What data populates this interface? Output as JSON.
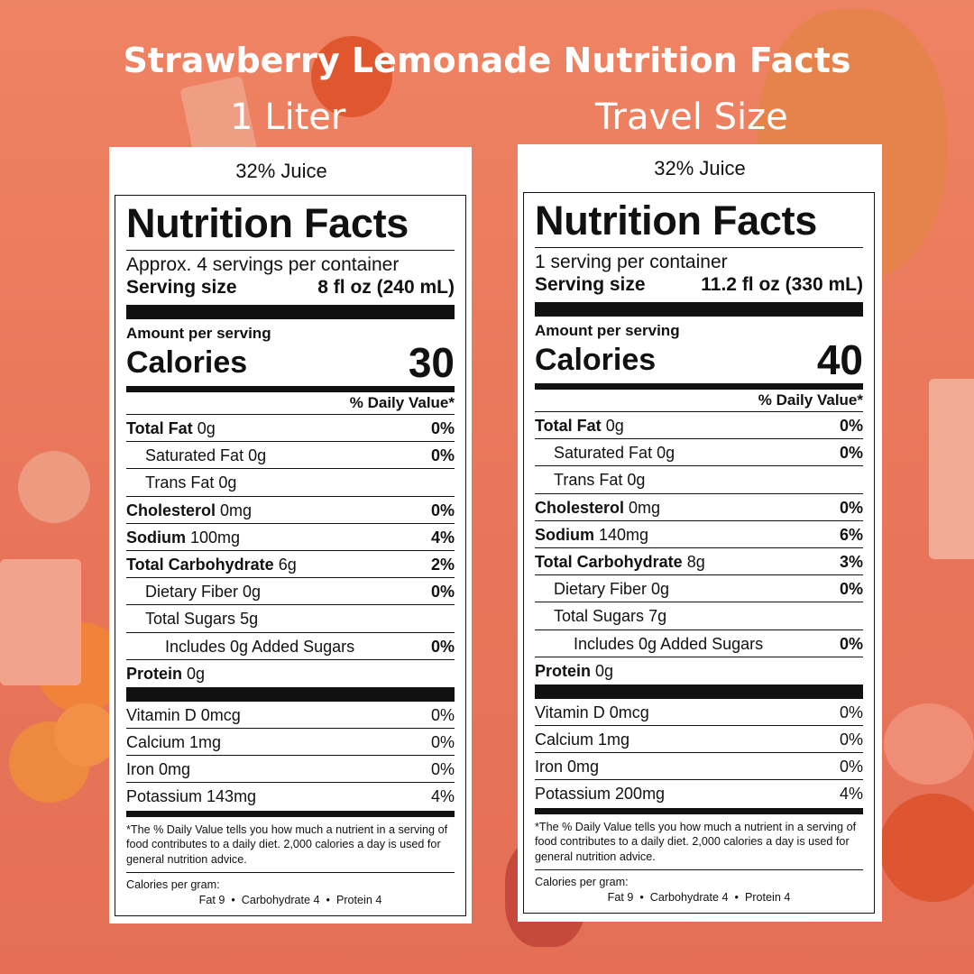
{
  "title": "Strawberry Lemonade Nutrition Facts",
  "labels": [
    {
      "heading": "1 Liter",
      "juice": "32% Juice",
      "nf_title": "Nutrition Facts",
      "servings": "Approx. 4 servings per container",
      "serving_size_label": "Serving size",
      "serving_size_value": "8 fl oz (240 mL)",
      "amount_per_serving": "Amount per serving",
      "calories_label": "Calories",
      "calories_value": "30",
      "dv_header": "% Daily Value*",
      "nutrients": [
        {
          "name": "Total Fat",
          "amount": "0g",
          "pct": "0%"
        },
        {
          "name": "Saturated Fat",
          "amount": "0g",
          "pct": "0%"
        },
        {
          "name": "Trans Fat",
          "amount": "0g",
          "pct": ""
        },
        {
          "name": "Cholesterol",
          "amount": "0mg",
          "pct": "0%"
        },
        {
          "name": "Sodium",
          "amount": "100mg",
          "pct": "4%"
        },
        {
          "name": "Total Carbohydrate",
          "amount": "6g",
          "pct": "2%"
        },
        {
          "name": "Dietary Fiber",
          "amount": "0g",
          "pct": "0%"
        },
        {
          "name": "Total Sugars",
          "amount": "5g",
          "pct": ""
        },
        {
          "name": "Includes 0g Added Sugars",
          "amount": "",
          "pct": "0%"
        },
        {
          "name": "Protein",
          "amount": "0g",
          "pct": ""
        }
      ],
      "vitamins": [
        {
          "text": "Vitamin D 0mcg",
          "pct": "0%"
        },
        {
          "text": "Calcium 1mg",
          "pct": "0%"
        },
        {
          "text": "Iron 0mg",
          "pct": "0%"
        },
        {
          "text": "Potassium 143mg",
          "pct": "4%"
        }
      ],
      "footnote": "*The % Daily Value tells you how much a nutrient in a serving of food contributes to a daily diet. 2,000 calories a day is used for general nutrition advice.",
      "calories_per_gram": "Calories per gram:",
      "calories_per_gram_values": "Fat 9  •  Carbohydrate 4  •  Protein 4"
    },
    {
      "heading": "Travel Size",
      "juice": "32% Juice",
      "nf_title": "Nutrition Facts",
      "servings": "1 serving per container",
      "serving_size_label": "Serving size",
      "serving_size_value": "11.2 fl oz (330 mL)",
      "amount_per_serving": "Amount per serving",
      "calories_label": "Calories",
      "calories_value": "40",
      "dv_header": "% Daily Value*",
      "nutrients": [
        {
          "name": "Total Fat",
          "amount": "0g",
          "pct": "0%"
        },
        {
          "name": "Saturated Fat",
          "amount": "0g",
          "pct": "0%"
        },
        {
          "name": "Trans Fat",
          "amount": "0g",
          "pct": ""
        },
        {
          "name": "Cholesterol",
          "amount": "0mg",
          "pct": "0%"
        },
        {
          "name": "Sodium",
          "amount": "140mg",
          "pct": "6%"
        },
        {
          "name": "Total Carbohydrate",
          "amount": "8g",
          "pct": "3%"
        },
        {
          "name": "Dietary Fiber",
          "amount": "0g",
          "pct": "0%"
        },
        {
          "name": "Total Sugars",
          "amount": "7g",
          "pct": ""
        },
        {
          "name": "Includes 0g Added Sugars",
          "amount": "",
          "pct": "0%"
        },
        {
          "name": "Protein",
          "amount": "0g",
          "pct": ""
        }
      ],
      "vitamins": [
        {
          "text": "Vitamin D 0mcg",
          "pct": "0%"
        },
        {
          "text": "Calcium 1mg",
          "pct": "0%"
        },
        {
          "text": "Iron 0mg",
          "pct": "0%"
        },
        {
          "text": "Potassium 200mg",
          "pct": "4%"
        }
      ],
      "footnote": "*The % Daily Value tells you how much a nutrient in a serving of food contributes to a daily diet. 2,000 calories a day is used for general nutrition advice.",
      "calories_per_gram": "Calories per gram:",
      "calories_per_gram_values": "Fat 9  •  Carbohydrate 4  •  Protein 4"
    }
  ]
}
